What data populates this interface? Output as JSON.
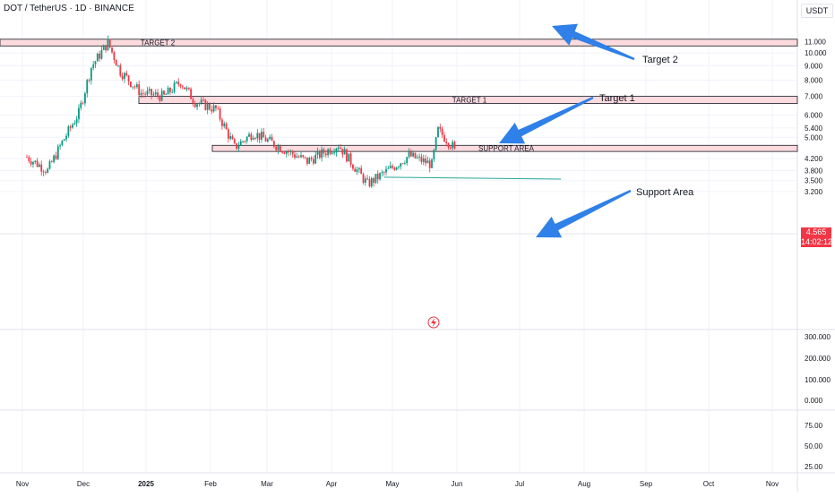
{
  "header": {
    "title": "DOT / TetherUS · 1D · BINANCE",
    "currency": "USDT"
  },
  "last_price": {
    "value": "4.565",
    "countdown": "14:02:12"
  },
  "colors": {
    "up": "#089981",
    "down": "#f23645",
    "zone_fill": "#fbd5d9",
    "zone_border": "#131722",
    "arrow": "#2f80e8",
    "trendline": "#26a69a",
    "grid": "#f0f3fa"
  },
  "chart_data": [
    {
      "type": "candlestick",
      "title": "DOT / TetherUS · 1D · BINANCE",
      "y_scale": "log",
      "y_ticks": [
        "11.000",
        "10.000",
        "9.000",
        "8.000",
        "7.000",
        "6.000",
        "5.400",
        "5.000",
        "4.200",
        "3.800",
        "3.500",
        "3.200"
      ],
      "x_ticks": [
        "Nov",
        "Dec",
        "2025",
        "Feb",
        "Mar",
        "Apr",
        "May",
        "Jun",
        "Jul",
        "Aug",
        "Sep",
        "Oct",
        "Nov"
      ],
      "approx_close_path": [
        {
          "date": "Oct 25",
          "close": 4.3
        },
        {
          "date": "Nov 5",
          "close": 3.8
        },
        {
          "date": "Nov 12",
          "close": 4.8
        },
        {
          "date": "Nov 20",
          "close": 6.1
        },
        {
          "date": "Nov 26",
          "close": 8.9
        },
        {
          "date": "Dec 4",
          "close": 10.9
        },
        {
          "date": "Dec 10",
          "close": 8.6
        },
        {
          "date": "Dec 20",
          "close": 7.2
        },
        {
          "date": "Dec 31",
          "close": 7.0
        },
        {
          "date": "Jan 8",
          "close": 7.9
        },
        {
          "date": "Jan 15",
          "close": 6.7
        },
        {
          "date": "Jan 25",
          "close": 6.3
        },
        {
          "date": "Feb 3",
          "close": 4.6
        },
        {
          "date": "Feb 12",
          "close": 5.2
        },
        {
          "date": "Feb 25",
          "close": 4.6
        },
        {
          "date": "Mar 10",
          "close": 4.1
        },
        {
          "date": "Mar 25",
          "close": 4.7
        },
        {
          "date": "Apr 8",
          "close": 3.4
        },
        {
          "date": "Apr 20",
          "close": 3.9
        },
        {
          "date": "Apr 28",
          "close": 4.3
        },
        {
          "date": "May 9",
          "close": 4.0
        },
        {
          "date": "May 12",
          "close": 5.3
        },
        {
          "date": "May 20",
          "close": 4.56
        }
      ],
      "zones": [
        {
          "label": "TARGET 2",
          "low": 10.6,
          "high": 11.2
        },
        {
          "label": "TARGET 1",
          "low": 6.6,
          "high": 7.0
        },
        {
          "label": "SUPPORT AREA",
          "low": 4.45,
          "high": 4.68
        }
      ],
      "annotations": [
        "Target 2",
        "Target 1",
        "Support Area"
      ]
    },
    {
      "type": "volume",
      "y_ticks": [
        "300.000",
        "200.000",
        "100.000",
        "0.000"
      ]
    },
    {
      "type": "indicator",
      "y_ticks": [
        "75.00",
        "50.00",
        "25.00"
      ]
    }
  ]
}
